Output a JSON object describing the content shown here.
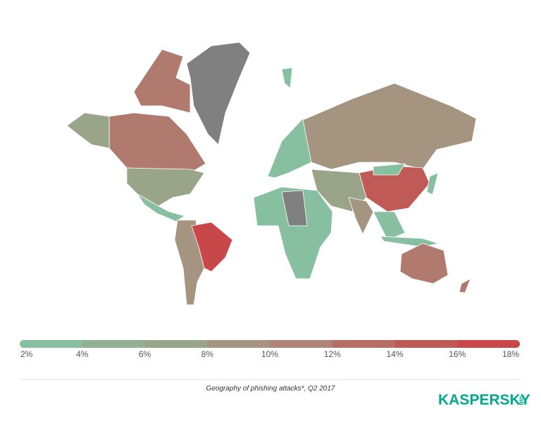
{
  "legend": {
    "ticks": [
      {
        "value": 2,
        "label": "2%"
      },
      {
        "value": 4,
        "label": "4%"
      },
      {
        "value": 6,
        "label": "6%"
      },
      {
        "value": 8,
        "label": "8%"
      },
      {
        "value": 10,
        "label": "10%"
      },
      {
        "value": 12,
        "label": "12%"
      },
      {
        "value": 14,
        "label": "14%"
      },
      {
        "value": 16,
        "label": "16%"
      },
      {
        "value": 18,
        "label": "18%"
      }
    ],
    "colors": [
      "#87c0a0",
      "#92b092",
      "#9aa488",
      "#a49480",
      "#ae8576",
      "#b76e66",
      "#c05a57",
      "#c8484a"
    ]
  },
  "caption": "Geography of phishing attacks*, Q2 2017",
  "logo": {
    "name": "KASPERSKY",
    "suffix": "lab"
  }
}
